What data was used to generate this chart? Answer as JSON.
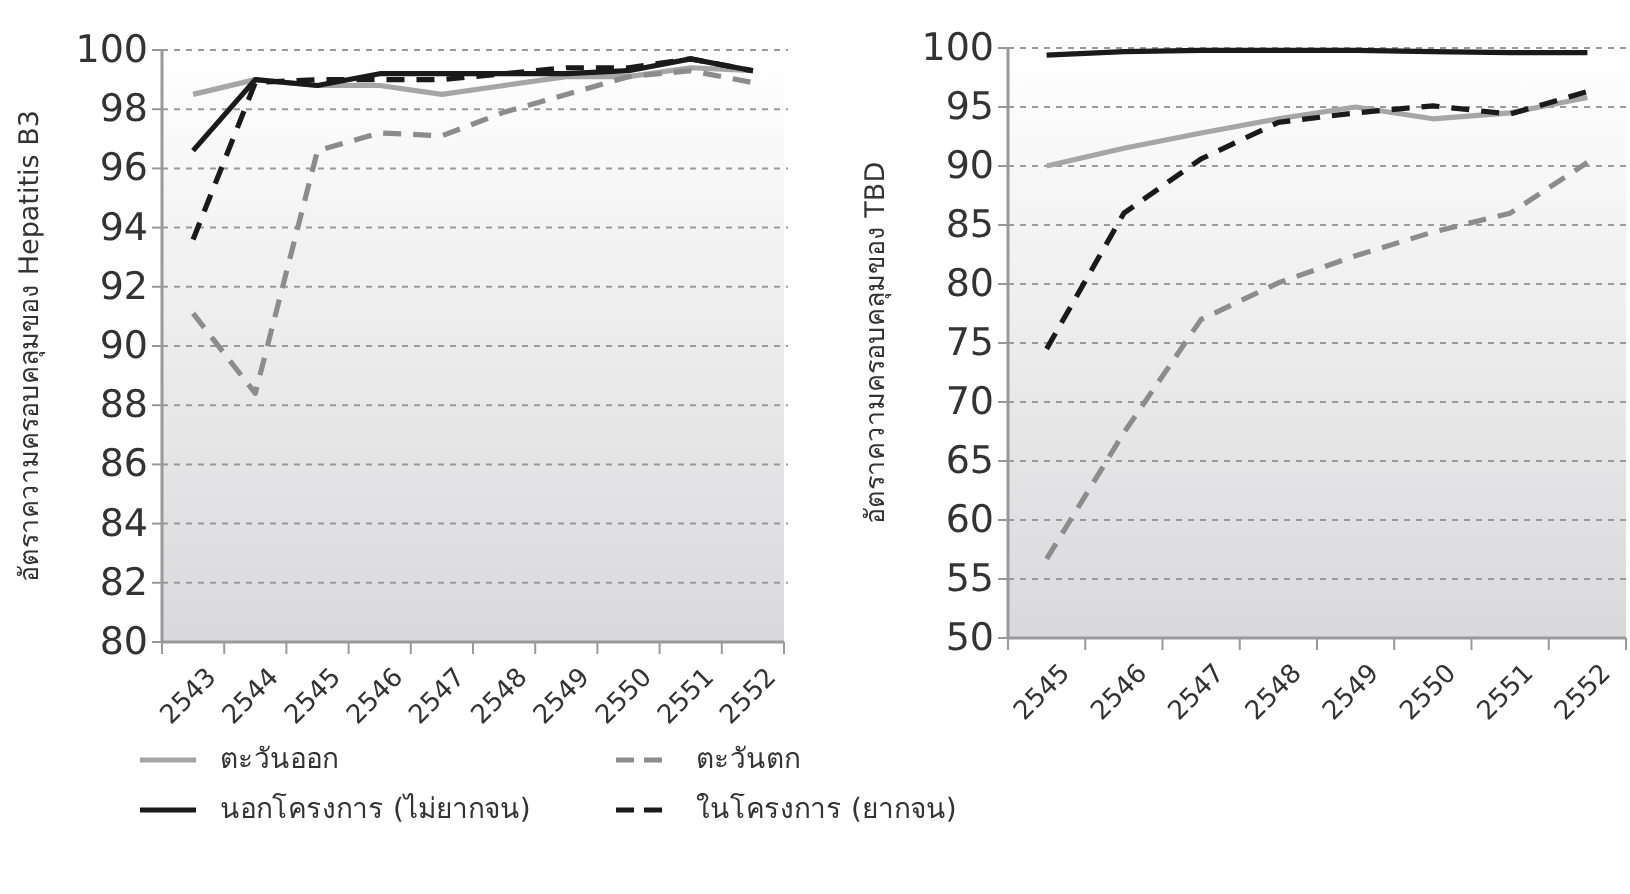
{
  "chart_data": [
    {
      "type": "line",
      "ylabel": "อัตราความครอบคลุมของ Hepatitis B3",
      "categories": [
        "2543",
        "2544",
        "2545",
        "2546",
        "2547",
        "2548",
        "2549",
        "2550",
        "2551",
        "2552"
      ],
      "ylim": [
        80,
        100
      ],
      "yticks": [
        80,
        82,
        84,
        86,
        88,
        90,
        92,
        94,
        96,
        98,
        100
      ],
      "grid": "y",
      "legend": "bottom",
      "series": [
        {
          "name": "ตะวันออก",
          "color": "#a6a6a6",
          "line_style": "solid",
          "values": [
            98.5,
            99.0,
            98.8,
            98.8,
            98.5,
            98.8,
            99.1,
            99.1,
            99.4,
            99.3
          ]
        },
        {
          "name": "ตะวันตก",
          "color": "#8c8c8c",
          "line_style": "dashed",
          "values": [
            91.1,
            88.4,
            96.6,
            97.2,
            97.1,
            97.9,
            98.5,
            99.1,
            99.3,
            98.9
          ]
        },
        {
          "name": "นอกโครงการ (ไม่ยากจน)",
          "color": "#1a1a1a",
          "line_style": "solid",
          "values": [
            96.6,
            99.0,
            98.8,
            99.2,
            99.2,
            99.2,
            99.2,
            99.3,
            99.7,
            99.3
          ]
        },
        {
          "name": "ในโครงการ (ยากจน)",
          "color": "#1a1a1a",
          "line_style": "dashed",
          "values": [
            93.6,
            98.9,
            99.0,
            99.0,
            99.0,
            99.2,
            99.4,
            99.4,
            99.7,
            99.3
          ]
        }
      ]
    },
    {
      "type": "line",
      "ylabel": "อัตราความครอบคลุมของ TBD",
      "categories": [
        "2545",
        "2546",
        "2547",
        "2548",
        "2549",
        "2550",
        "2551",
        "2552"
      ],
      "ylim": [
        50,
        100
      ],
      "yticks": [
        50,
        55,
        60,
        65,
        70,
        75,
        80,
        85,
        90,
        95,
        100
      ],
      "grid": "y",
      "series": [
        {
          "color": "#a6a6a6",
          "line_style": "solid",
          "values": [
            90.0,
            91.5,
            92.8,
            94.0,
            95.0,
            94.0,
            94.5,
            95.8
          ]
        },
        {
          "color": "#8c8c8c",
          "line_style": "dashed",
          "values": [
            56.7,
            67.4,
            77.0,
            80.1,
            82.4,
            84.4,
            86.0,
            90.3
          ]
        },
        {
          "color": "#1a1a1a",
          "line_style": "solid",
          "values": [
            99.4,
            99.7,
            99.8,
            99.8,
            99.8,
            99.7,
            99.6,
            99.6
          ]
        },
        {
          "color": "#1a1a1a",
          "line_style": "dashed",
          "values": [
            74.5,
            86.0,
            90.6,
            93.7,
            94.5,
            95.1,
            94.4,
            96.3
          ]
        }
      ]
    }
  ]
}
